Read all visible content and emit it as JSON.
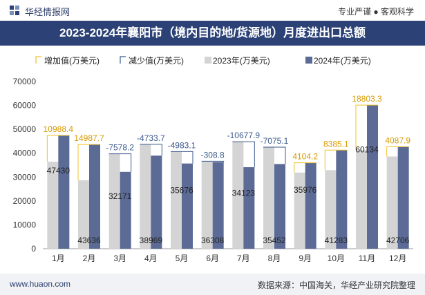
{
  "header": {
    "brand": "华经情报网",
    "tagline": "专业严谨 ● 客观科学"
  },
  "footer": {
    "website": "www.huaon.com",
    "source": "数据来源：中国海关，华经产业研究院整理"
  },
  "chart_data": {
    "type": "bar",
    "title": "2023-2024年襄阳市（境内目的地/货源地）月度进出口总额",
    "categories": [
      "1月",
      "2月",
      "3月",
      "4月",
      "5月",
      "6月",
      "7月",
      "8月",
      "9月",
      "10月",
      "11月",
      "12月"
    ],
    "series": [
      {
        "name": "2023年(万美元)",
        "color": "#d4d4d4",
        "values": [
          36442,
          28648,
          39749,
          43703,
          40659,
          36617,
          44801,
          42527,
          31872,
          32898,
          41331,
          38618
        ]
      },
      {
        "name": "2024年(万美元)",
        "color": "#5b6b96",
        "values": [
          47430,
          43636,
          32171,
          38969,
          35676,
          36308,
          34123,
          35452,
          35976,
          41283,
          60134,
          42706
        ]
      }
    ],
    "changes": [
      10988.4,
      14987.7,
      -7578.2,
      -4733.7,
      -4983.1,
      -308.8,
      -10677.9,
      -7075.1,
      4104.2,
      8385.1,
      18803.3,
      4087.9
    ],
    "legend": [
      {
        "label": "增加值(万美元)",
        "kind": "increase",
        "color": "#f0c020"
      },
      {
        "label": "减少值(万美元)",
        "kind": "decrease",
        "color": "#3b5a8c"
      },
      {
        "label": "2023年(万美元)",
        "kind": "series0"
      },
      {
        "label": "2024年(万美元)",
        "kind": "series1"
      }
    ],
    "legend_position": "top-left",
    "ylim": [
      0,
      70000
    ],
    "yticks": [
      0,
      10000,
      20000,
      30000,
      40000,
      50000,
      60000,
      70000
    ],
    "grid": false,
    "xlabel": "",
    "ylabel": ""
  }
}
